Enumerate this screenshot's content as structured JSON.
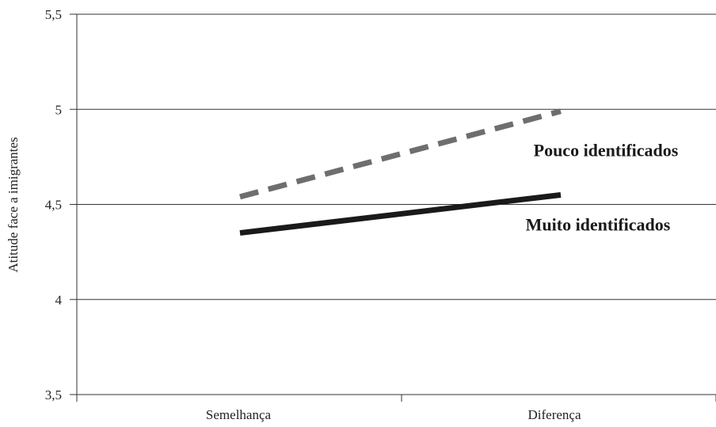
{
  "chart_data": {
    "type": "line",
    "title": "",
    "xlabel": "",
    "ylabel": "Atitude face a imigrantes",
    "categories": [
      "Semelhança",
      "Diferença"
    ],
    "ylim": [
      3.5,
      5.5
    ],
    "yticks": [
      "3,5",
      "4",
      "4,5",
      "5",
      "5,5"
    ],
    "grid": true,
    "series": [
      {
        "name": "Pouco identificados",
        "values": [
          4.54,
          4.99
        ],
        "color": "#6e6e6e",
        "style": "dashed"
      },
      {
        "name": "Muito identificados",
        "values": [
          4.35,
          4.55
        ],
        "color": "#1a1a1a",
        "style": "solid"
      }
    ]
  }
}
